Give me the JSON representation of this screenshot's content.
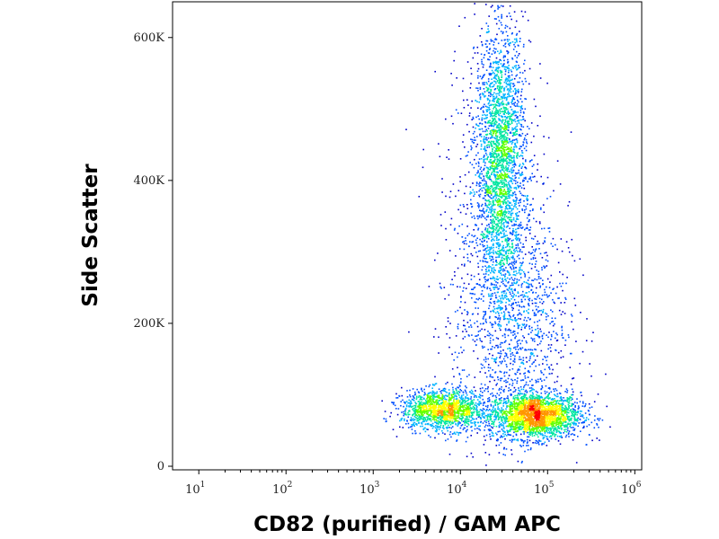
{
  "chart_data": {
    "type": "scatter",
    "subtype": "flow-cytometry-density-dot-plot",
    "xlabel": "CD82 (purified) / GAM APC",
    "ylabel": "Side Scatter",
    "x_scale": "log",
    "xlim": [
      5,
      1200000
    ],
    "x_ticks": [
      {
        "base": "10",
        "exp": "1",
        "value": 10
      },
      {
        "base": "10",
        "exp": "2",
        "value": 100
      },
      {
        "base": "10",
        "exp": "3",
        "value": 1000
      },
      {
        "base": "10",
        "exp": "4",
        "value": 10000
      },
      {
        "base": "10",
        "exp": "5",
        "value": 100000
      },
      {
        "base": "10",
        "exp": "6",
        "value": 1000000
      }
    ],
    "ylim": [
      -5000,
      650000
    ],
    "y_ticks": [
      {
        "label": "0",
        "value": 0
      },
      {
        "label": "200K",
        "value": 200000
      },
      {
        "label": "400K",
        "value": 400000
      },
      {
        "label": "600K",
        "value": 600000
      }
    ],
    "grid": false,
    "legend": "none",
    "color_scale": [
      "#0000c8",
      "#0050ff",
      "#00b4ff",
      "#00e6a0",
      "#64ff00",
      "#ffff00",
      "#ff9600",
      "#ff0000"
    ],
    "populations": [
      {
        "name": "",
        "n": 2400,
        "x_log_center": 4.85,
        "x_log_sd": 0.26,
        "y_center": 72000,
        "y_sd": 16000
      },
      {
        "name": "",
        "n": 1500,
        "x_log_center": 3.8,
        "x_log_sd": 0.24,
        "y_center": 80000,
        "y_sd": 14000
      },
      {
        "name": "",
        "n": 2600,
        "x_log_center": 4.45,
        "x_log_sd": 0.14,
        "y_center": 430000,
        "y_sd": 95000
      },
      {
        "name": "",
        "n": 1100,
        "x_log_center": 4.6,
        "x_log_sd": 0.32,
        "y_center": 210000,
        "y_sd": 80000
      },
      {
        "name": "",
        "n": 500,
        "x_log_center": 4.4,
        "x_log_sd": 0.35,
        "y_center": 330000,
        "y_sd": 160000
      }
    ]
  }
}
